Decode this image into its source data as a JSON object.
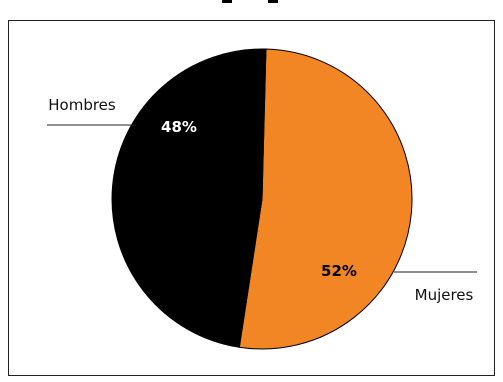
{
  "chart_data": {
    "type": "pie",
    "title": "",
    "categories": [
      "Mujeres",
      "Hombres"
    ],
    "values": [
      52,
      48
    ],
    "value_labels": [
      "52%",
      "48%"
    ],
    "colors": [
      "#f28524",
      "#000000"
    ],
    "label_colors": [
      "#000000",
      "#ffffff"
    ],
    "legend_placement": "callouts (left: Hombres, right: Mujeres)",
    "start": "12 o'clock",
    "direction": "clockwise"
  }
}
